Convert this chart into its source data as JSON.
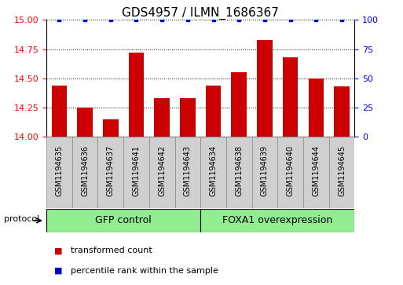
{
  "title": "GDS4957 / ILMN_1686367",
  "categories": [
    "GSM1194635",
    "GSM1194636",
    "GSM1194637",
    "GSM1194641",
    "GSM1194642",
    "GSM1194643",
    "GSM1194634",
    "GSM1194638",
    "GSM1194639",
    "GSM1194640",
    "GSM1194644",
    "GSM1194645"
  ],
  "bar_values": [
    14.44,
    14.25,
    14.15,
    14.72,
    14.33,
    14.33,
    14.44,
    14.55,
    14.83,
    14.68,
    14.5,
    14.43
  ],
  "percentile_values": [
    100,
    100,
    100,
    100,
    100,
    100,
    100,
    100,
    100,
    100,
    100,
    100
  ],
  "bar_color": "#cc0000",
  "percentile_color": "#0000cc",
  "ylim_left": [
    14.0,
    15.0
  ],
  "ylim_right": [
    0,
    100
  ],
  "yticks_left": [
    14.0,
    14.25,
    14.5,
    14.75,
    15.0
  ],
  "yticks_right": [
    0,
    25,
    50,
    75,
    100
  ],
  "group1_label": "GFP control",
  "group2_label": "FOXA1 overexpression",
  "group1_indices": [
    0,
    1,
    2,
    3,
    4,
    5
  ],
  "group2_indices": [
    6,
    7,
    8,
    9,
    10,
    11
  ],
  "group_color": "#90ee90",
  "protocol_label": "protocol",
  "legend_bar_label": "transformed count",
  "legend_pct_label": "percentile rank within the sample",
  "background_color": "#ffffff",
  "bar_bottom": 14.0,
  "title_fontsize": 11,
  "tick_fontsize": 8,
  "label_fontsize": 7,
  "group_fontsize": 9
}
